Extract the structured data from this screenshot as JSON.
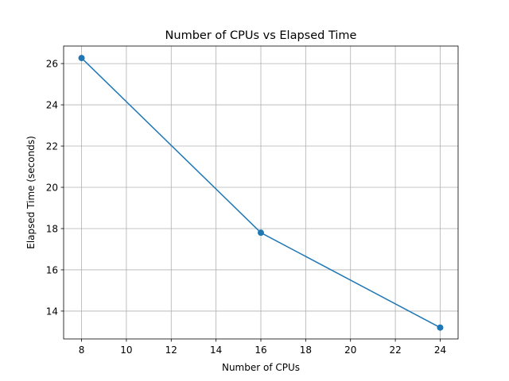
{
  "chart_data": {
    "type": "line",
    "title": "Number of CPUs vs Elapsed Time",
    "xlabel": "Number of CPUs",
    "ylabel": "Elapsed Time (seconds)",
    "x": [
      8,
      16,
      24
    ],
    "series": [
      {
        "values": [
          26.27,
          17.8,
          13.2
        ]
      }
    ],
    "xlim": [
      7.2,
      24.8
    ],
    "ylim": [
      12.65,
      26.85
    ],
    "xticks": [
      8,
      10,
      12,
      14,
      16,
      18,
      20,
      22,
      24
    ],
    "yticks": [
      14,
      16,
      18,
      20,
      22,
      24,
      26
    ],
    "grid": true,
    "marker": "circle",
    "colors": {
      "line": "#1f77b4",
      "grid": "#b0b0b0",
      "axes": "#000000"
    }
  }
}
